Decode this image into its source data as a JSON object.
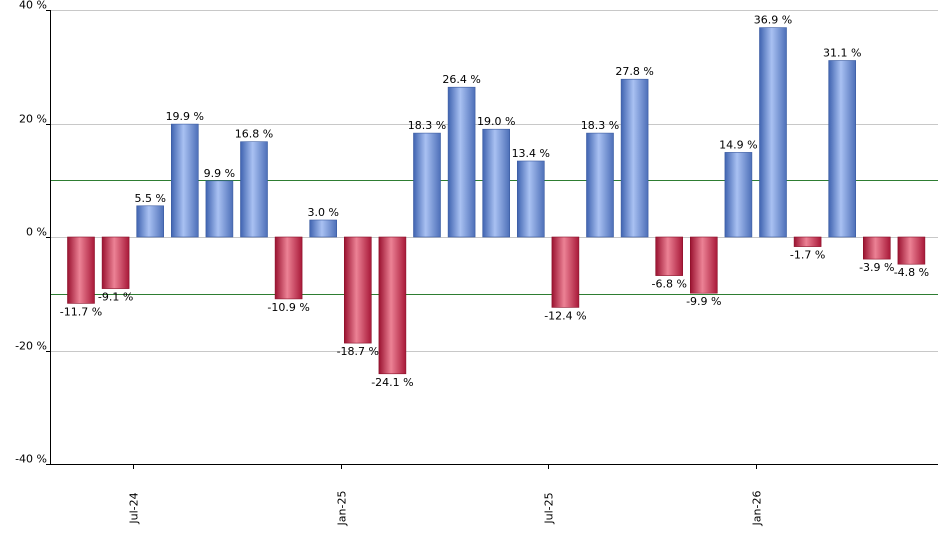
{
  "chart_data": {
    "type": "bar",
    "y_tick_labels": [
      "40 %",
      "20 %",
      "0 %",
      "-20 %",
      "-40 %"
    ],
    "y_ticks": [
      40,
      20,
      0,
      -20,
      -40
    ],
    "ylim": [
      -40,
      40
    ],
    "x_tick_labels": [
      {
        "label": "Jul-24",
        "index": 1
      },
      {
        "label": "Jan-25",
        "index": 7
      },
      {
        "label": "Jul-25",
        "index": 13
      },
      {
        "label": "Jan-26",
        "index": 19
      }
    ],
    "reference_lines": [
      10,
      -10
    ],
    "grid": true,
    "values": [
      -11.7,
      -9.1,
      5.5,
      19.9,
      9.9,
      16.8,
      -10.9,
      3.0,
      -18.7,
      -24.1,
      18.3,
      26.4,
      19.0,
      13.4,
      -12.4,
      18.3,
      27.8,
      -6.8,
      -9.9,
      14.9,
      36.9,
      -1.7,
      31.1,
      -3.9,
      -4.8
    ],
    "labels": [
      "-11.7 %",
      "-9.1 %",
      "5.5 %",
      "19.9 %",
      "9.9 %",
      "16.8 %",
      "-10.9 %",
      "3.0 %",
      "-18.7 %",
      "-24.1 %",
      "18.3 %",
      "26.4 %",
      "19.0 %",
      "13.4 %",
      "-12.4 %",
      "18.3 %",
      "27.8 %",
      "-6.8 %",
      "-9.9 %",
      "14.9 %",
      "36.9 %",
      "-1.7 %",
      "31.1 %",
      "-3.9 %",
      "-4.8 %"
    ],
    "colors": {
      "positive": "#6f92d8",
      "negative": "#c8324f",
      "reference_line": "#2e7d32",
      "grid": "#c8c8c8",
      "axis": "#000000"
    }
  }
}
